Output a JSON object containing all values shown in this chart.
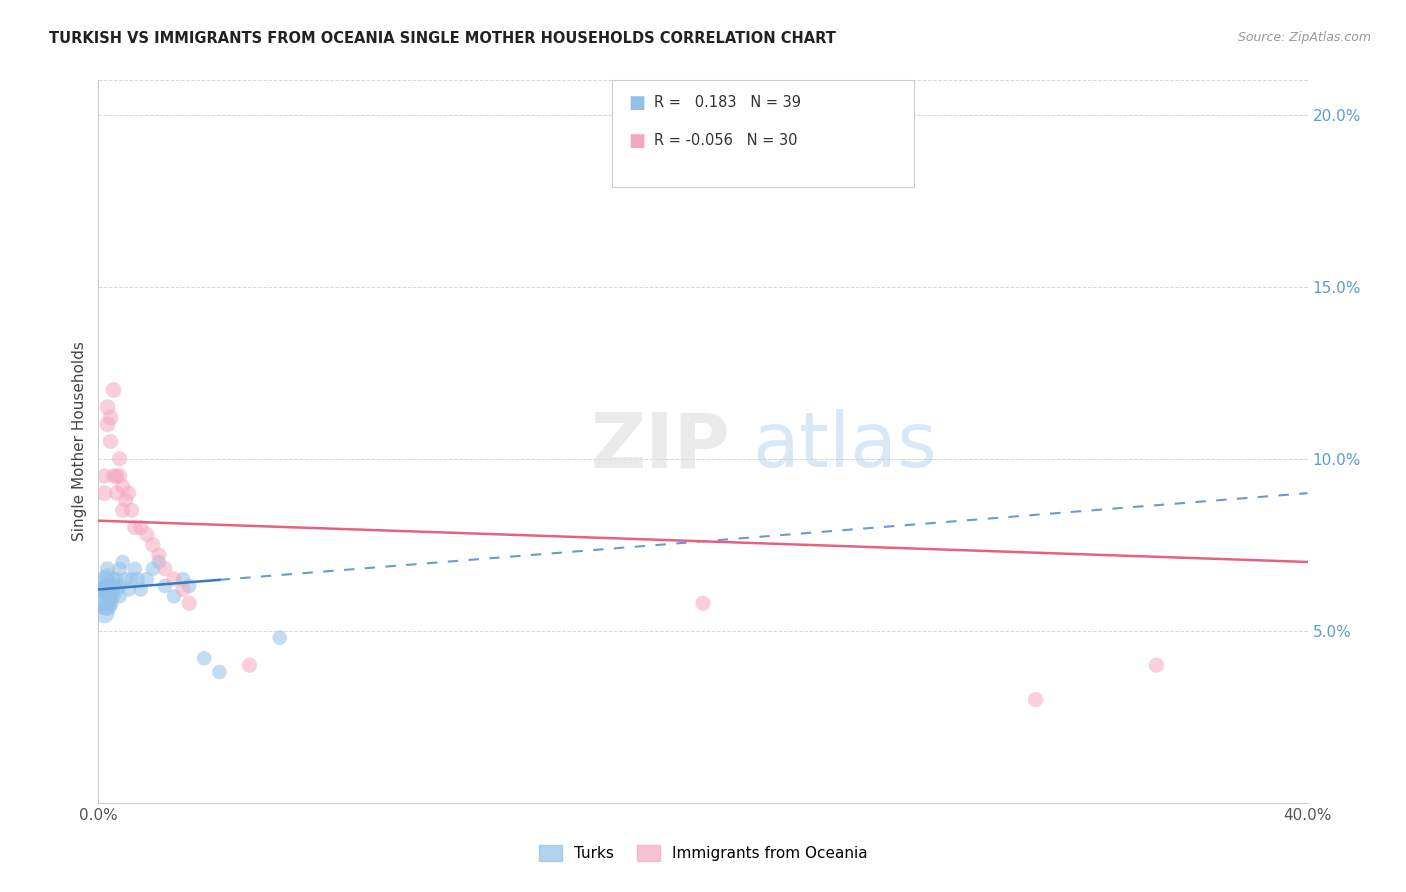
{
  "title": "TURKISH VS IMMIGRANTS FROM OCEANIA SINGLE MOTHER HOUSEHOLDS CORRELATION CHART",
  "source": "Source: ZipAtlas.com",
  "ylabel": "Single Mother Households",
  "x_min": 0.0,
  "x_max": 0.4,
  "y_min": 0.0,
  "y_max": 0.21,
  "y_ticks_right": [
    0.05,
    0.1,
    0.15,
    0.2
  ],
  "y_tick_labels_right": [
    "5.0%",
    "10.0%",
    "15.0%",
    "20.0%"
  ],
  "turks_color": "#92C0E8",
  "oceania_color": "#F4A8BE",
  "trendline_turks_color": "#3A78C3",
  "trendline_oceania_color": "#E86080",
  "turks_x": [
    0.001,
    0.001,
    0.002,
    0.002,
    0.002,
    0.002,
    0.003,
    0.003,
    0.003,
    0.003,
    0.003,
    0.004,
    0.004,
    0.004,
    0.005,
    0.005,
    0.005,
    0.006,
    0.006,
    0.007,
    0.007,
    0.007,
    0.008,
    0.009,
    0.01,
    0.011,
    0.012,
    0.013,
    0.014,
    0.016,
    0.018,
    0.02,
    0.022,
    0.025,
    0.028,
    0.03,
    0.035,
    0.04,
    0.06
  ],
  "turks_y": [
    0.06,
    0.063,
    0.058,
    0.055,
    0.062,
    0.065,
    0.057,
    0.06,
    0.063,
    0.066,
    0.068,
    0.058,
    0.062,
    0.06,
    0.063,
    0.06,
    0.065,
    0.062,
    0.065,
    0.063,
    0.06,
    0.068,
    0.07,
    0.065,
    0.062,
    0.065,
    0.068,
    0.065,
    0.062,
    0.065,
    0.068,
    0.07,
    0.063,
    0.06,
    0.065,
    0.063,
    0.042,
    0.038,
    0.048
  ],
  "turks_sizes": [
    500,
    250,
    300,
    200,
    180,
    160,
    180,
    160,
    140,
    130,
    120,
    140,
    130,
    120,
    120,
    110,
    110,
    110,
    110,
    110,
    110,
    110,
    110,
    110,
    110,
    110,
    110,
    110,
    110,
    110,
    110,
    110,
    110,
    110,
    110,
    110,
    110,
    110,
    110
  ],
  "oceania_x": [
    0.002,
    0.002,
    0.003,
    0.003,
    0.004,
    0.004,
    0.005,
    0.005,
    0.006,
    0.006,
    0.007,
    0.007,
    0.008,
    0.008,
    0.009,
    0.01,
    0.011,
    0.012,
    0.014,
    0.016,
    0.018,
    0.02,
    0.022,
    0.025,
    0.028,
    0.03,
    0.05,
    0.2,
    0.31,
    0.35
  ],
  "oceania_y": [
    0.09,
    0.095,
    0.11,
    0.115,
    0.112,
    0.105,
    0.12,
    0.095,
    0.095,
    0.09,
    0.1,
    0.095,
    0.085,
    0.092,
    0.088,
    0.09,
    0.085,
    0.08,
    0.08,
    0.078,
    0.075,
    0.072,
    0.068,
    0.065,
    0.062,
    0.058,
    0.04,
    0.058,
    0.03,
    0.04
  ],
  "oceania_sizes": [
    130,
    120,
    130,
    130,
    130,
    120,
    130,
    120,
    120,
    120,
    120,
    120,
    120,
    120,
    120,
    120,
    120,
    120,
    120,
    120,
    120,
    120,
    120,
    120,
    120,
    120,
    120,
    120,
    120,
    120
  ],
  "trendline_turks_x0": 0.0,
  "trendline_turks_x1": 0.4,
  "trendline_turks_y0": 0.062,
  "trendline_turks_y1": 0.09,
  "trendline_turks_solid_x1": 0.04,
  "trendline_oceania_x0": 0.0,
  "trendline_oceania_x1": 0.4,
  "trendline_oceania_y0": 0.082,
  "trendline_oceania_y1": 0.07,
  "watermark_zip_color": "#DDDDDD",
  "watermark_atlas_color": "#AACCEE",
  "background_color": "#FFFFFF",
  "grid_color": "#CCCCCC"
}
